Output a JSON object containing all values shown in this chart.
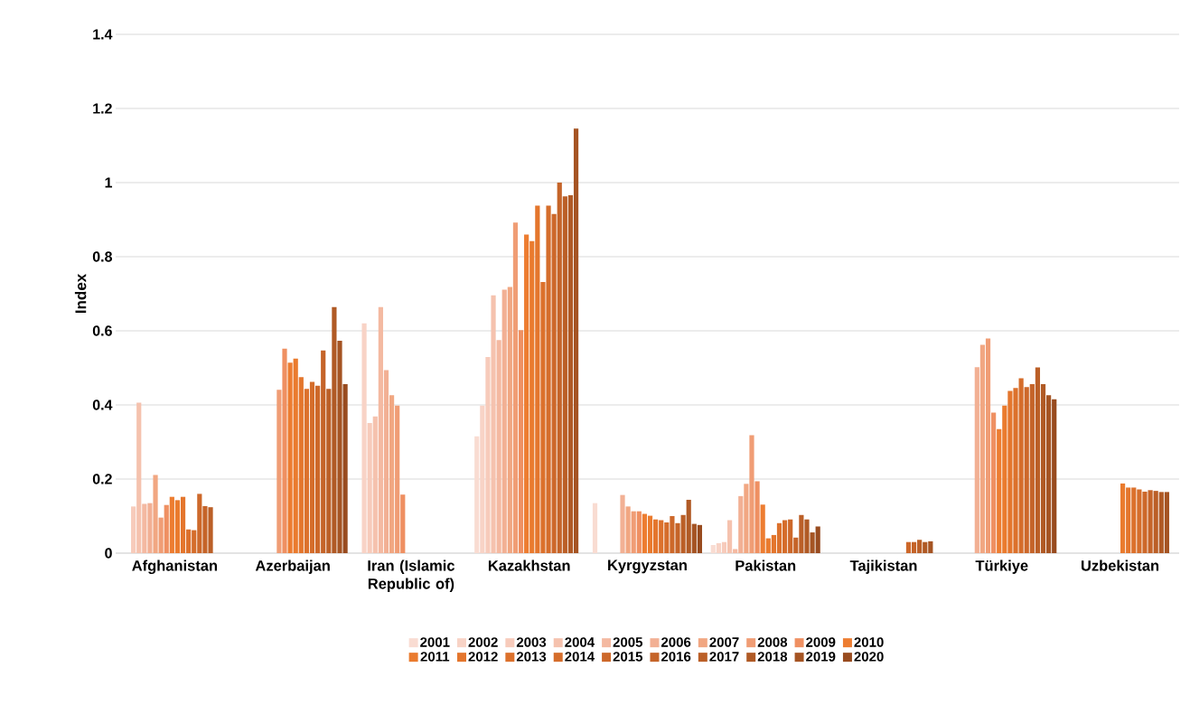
{
  "chart_data": {
    "type": "bar",
    "ylabel": "Index",
    "categories": [
      "Afghanistan",
      "Azerbaijan",
      "Iran (Islamic Republic of)",
      "Kazakhstan",
      "Kyrgyzstan",
      "Pakistan",
      "Tajikistan",
      "Türkiye",
      "Uzbekistan"
    ],
    "ylim": [
      0,
      1.4
    ],
    "yticks": [
      0,
      0.2,
      0.4,
      0.6,
      0.8,
      1,
      1.2,
      1.4
    ],
    "grid": "y",
    "legend": "bottom",
    "series": [
      {
        "name": "2001",
        "color": "#f9dcd2",
        "values": [
          null,
          null,
          null,
          0.315,
          0.135,
          0.022,
          null,
          null,
          null
        ]
      },
      {
        "name": "2002",
        "color": "#f8d3c6",
        "values": [
          null,
          null,
          0.62,
          0.398,
          null,
          0.027,
          null,
          null,
          null
        ]
      },
      {
        "name": "2003",
        "color": "#f7cbbb",
        "values": [
          0.126,
          null,
          0.351,
          0.529,
          null,
          0.03,
          null,
          null,
          null
        ]
      },
      {
        "name": "2004",
        "color": "#f5c2ae",
        "values": [
          0.406,
          null,
          0.369,
          0.696,
          null,
          0.089,
          null,
          null,
          null
        ]
      },
      {
        "name": "2005",
        "color": "#f4b9a1",
        "values": [
          0.133,
          null,
          0.664,
          0.575,
          null,
          0.011,
          null,
          null,
          null
        ]
      },
      {
        "name": "2006",
        "color": "#f2b094",
        "values": [
          0.135,
          null,
          0.494,
          0.711,
          0.157,
          0.154,
          null,
          0.502,
          null
        ]
      },
      {
        "name": "2007",
        "color": "#f1a782",
        "values": [
          0.211,
          null,
          0.426,
          0.718,
          0.126,
          0.187,
          null,
          0.562,
          null
        ]
      },
      {
        "name": "2008",
        "color": "#f09d75",
        "values": [
          0.096,
          0.441,
          0.398,
          0.892,
          0.113,
          0.318,
          null,
          0.579,
          null
        ]
      },
      {
        "name": "2009",
        "color": "#ef9062",
        "values": [
          0.13,
          0.552,
          0.158,
          0.602,
          0.113,
          0.194,
          null,
          0.379,
          null
        ]
      },
      {
        "name": "2010",
        "color": "#ed7d31",
        "values": [
          0.152,
          0.514,
          null,
          0.86,
          0.106,
          0.131,
          null,
          0.335,
          null
        ]
      },
      {
        "name": "2011",
        "color": "#ea7b2e",
        "values": [
          0.143,
          0.525,
          null,
          0.842,
          0.101,
          0.04,
          null,
          0.398,
          0.188
        ]
      },
      {
        "name": "2012",
        "color": "#e4762d",
        "values": [
          0.152,
          0.475,
          null,
          0.938,
          0.091,
          0.049,
          null,
          0.438,
          0.177
        ]
      },
      {
        "name": "2013",
        "color": "#dc712c",
        "values": [
          0.064,
          0.443,
          null,
          0.732,
          0.089,
          0.081,
          null,
          0.446,
          0.177
        ]
      },
      {
        "name": "2014",
        "color": "#d56d2b",
        "values": [
          0.062,
          0.462,
          null,
          0.938,
          0.083,
          0.089,
          null,
          0.472,
          0.172
        ]
      },
      {
        "name": "2015",
        "color": "#cd682a",
        "values": [
          0.16,
          0.452,
          null,
          0.915,
          0.1,
          0.091,
          0.03,
          0.448,
          0.166
        ]
      },
      {
        "name": "2016",
        "color": "#c56429",
        "values": [
          0.127,
          0.547,
          null,
          1.0,
          0.081,
          0.042,
          0.03,
          0.456,
          0.17
        ]
      },
      {
        "name": "2017",
        "color": "#bb5f27",
        "values": [
          0.124,
          0.443,
          null,
          0.963,
          0.103,
          0.103,
          0.036,
          0.501,
          0.168
        ]
      },
      {
        "name": "2018",
        "color": "#b05a25",
        "values": [
          null,
          0.664,
          null,
          0.966,
          0.144,
          0.091,
          0.03,
          0.456,
          0.165
        ]
      },
      {
        "name": "2019",
        "color": "#a55423",
        "values": [
          null,
          0.573,
          null,
          1.146,
          0.079,
          0.056,
          0.032,
          0.426,
          0.165
        ]
      },
      {
        "name": "2020",
        "color": "#984b1f",
        "values": [
          null,
          0.456,
          null,
          null,
          0.076,
          0.072,
          null,
          0.415,
          null
        ]
      }
    ]
  }
}
